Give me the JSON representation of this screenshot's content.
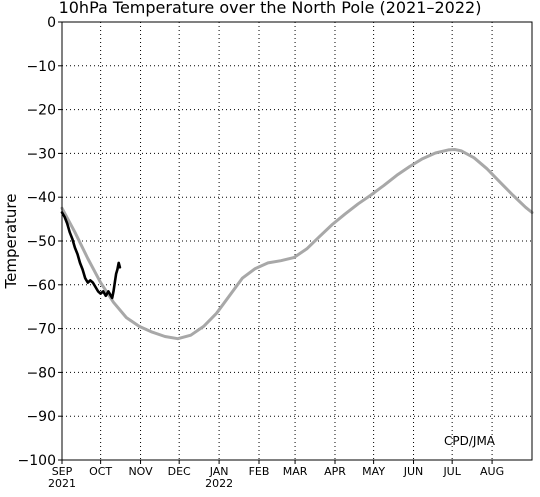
{
  "chart_data": {
    "type": "line",
    "title": "10hPa Temperature over the North Pole (2021–2022)",
    "ylabel": "Temperature",
    "xlabel": "",
    "credit": "CPD/JMA",
    "ylim": [
      -100,
      0
    ],
    "yticks": [
      0,
      -10,
      -20,
      -30,
      -40,
      -50,
      -60,
      -70,
      -80,
      -90,
      -100
    ],
    "xlim_days": [
      0,
      365
    ],
    "grid": true,
    "months": [
      {
        "label": "SEP",
        "year": "2021",
        "day": 0
      },
      {
        "label": "OCT",
        "year": "",
        "day": 30
      },
      {
        "label": "NOV",
        "year": "",
        "day": 61
      },
      {
        "label": "DEC",
        "year": "",
        "day": 91
      },
      {
        "label": "JAN",
        "year": "2022",
        "day": 122
      },
      {
        "label": "FEB",
        "year": "",
        "day": 153
      },
      {
        "label": "MAR",
        "year": "",
        "day": 181
      },
      {
        "label": "APR",
        "year": "",
        "day": 212
      },
      {
        "label": "MAY",
        "year": "",
        "day": 242
      },
      {
        "label": "JUN",
        "year": "",
        "day": 273
      },
      {
        "label": "JUL",
        "year": "",
        "day": 303
      },
      {
        "label": "AUG",
        "year": "",
        "day": 334
      }
    ],
    "series": [
      {
        "color": "#a8a8a8",
        "points": [
          [
            0,
            -42.5
          ],
          [
            10,
            -48
          ],
          [
            20,
            -54
          ],
          [
            30,
            -59.5
          ],
          [
            40,
            -64
          ],
          [
            50,
            -67.5
          ],
          [
            60,
            -69.5
          ],
          [
            70,
            -70.8
          ],
          [
            80,
            -71.8
          ],
          [
            90,
            -72.3
          ],
          [
            100,
            -71.5
          ],
          [
            110,
            -69.5
          ],
          [
            120,
            -66.5
          ],
          [
            130,
            -62.5
          ],
          [
            140,
            -58.5
          ],
          [
            150,
            -56.3
          ],
          [
            160,
            -55
          ],
          [
            170,
            -54.5
          ],
          [
            180,
            -53.8
          ],
          [
            190,
            -51.8
          ],
          [
            200,
            -49
          ],
          [
            210,
            -46.2
          ],
          [
            220,
            -43.8
          ],
          [
            230,
            -41.5
          ],
          [
            240,
            -39.5
          ],
          [
            250,
            -37.3
          ],
          [
            260,
            -35
          ],
          [
            270,
            -33
          ],
          [
            280,
            -31.2
          ],
          [
            290,
            -29.9
          ],
          [
            300,
            -29.2
          ],
          [
            305,
            -29.1
          ],
          [
            310,
            -29.4
          ],
          [
            320,
            -31
          ],
          [
            330,
            -33.5
          ],
          [
            340,
            -36.5
          ],
          [
            350,
            -39.5
          ],
          [
            360,
            -42.3
          ],
          [
            365,
            -43.5
          ]
        ]
      },
      {
        "color": "#000000",
        "points": [
          [
            0,
            -43.5
          ],
          [
            2,
            -44.5
          ],
          [
            4,
            -46
          ],
          [
            6,
            -48
          ],
          [
            8,
            -49.5
          ],
          [
            10,
            -51.5
          ],
          [
            12,
            -53
          ],
          [
            14,
            -55
          ],
          [
            16,
            -56.5
          ],
          [
            18,
            -58.5
          ],
          [
            20,
            -59.5
          ],
          [
            22,
            -59
          ],
          [
            24,
            -59.5
          ],
          [
            26,
            -60.5
          ],
          [
            28,
            -61.5
          ],
          [
            30,
            -62
          ],
          [
            32,
            -61.5
          ],
          [
            34,
            -62.5
          ],
          [
            36,
            -61.5
          ],
          [
            38,
            -62.5
          ],
          [
            39,
            -63
          ],
          [
            40,
            -61.5
          ],
          [
            41,
            -59.5
          ],
          [
            42,
            -57.5
          ],
          [
            43,
            -56.5
          ],
          [
            44,
            -55
          ],
          [
            45,
            -56
          ]
        ]
      }
    ]
  }
}
